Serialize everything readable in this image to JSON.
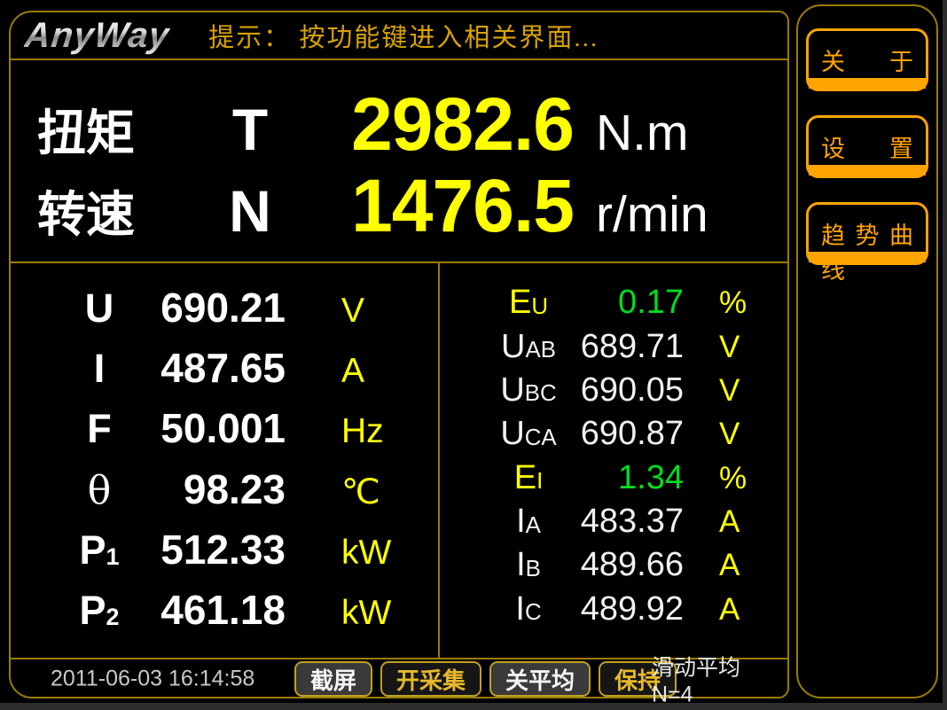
{
  "header": {
    "logo": "AnyWay",
    "hint": "提示： 按功能键进入相关界面..."
  },
  "sidebar": {
    "buttons": [
      {
        "label": "关于"
      },
      {
        "label": "设置"
      },
      {
        "label": "趋势曲线"
      }
    ]
  },
  "main_readouts": {
    "torque": {
      "name": "扭矩",
      "symbol": "T",
      "value": "2982.6",
      "unit": "N.m"
    },
    "speed": {
      "name": "转速",
      "symbol": "N",
      "value": "1476.5",
      "unit": "r/min"
    }
  },
  "left_panel": {
    "rows": [
      {
        "label": "U",
        "sub": "",
        "value": "690.21",
        "unit": "V"
      },
      {
        "label": "I",
        "sub": "",
        "value": "487.65",
        "unit": "A"
      },
      {
        "label": "F",
        "sub": "",
        "value": "50.001",
        "unit": "Hz"
      },
      {
        "label": "θ",
        "sub": "",
        "value": "98.23",
        "unit": "℃"
      },
      {
        "label": "P",
        "sub": "1",
        "value": "512.33",
        "unit": "kW"
      },
      {
        "label": "P",
        "sub": "2",
        "value": "461.18",
        "unit": "kW"
      }
    ]
  },
  "right_panel": {
    "rows": [
      {
        "label": "E",
        "sub": "U",
        "value": "0.17",
        "unit": "%"
      },
      {
        "label": "U",
        "sub": "AB",
        "value": "689.71",
        "unit": "V"
      },
      {
        "label": "U",
        "sub": "BC",
        "value": "690.05",
        "unit": "V"
      },
      {
        "label": "U",
        "sub": "CA",
        "value": "690.87",
        "unit": "V"
      },
      {
        "label": "E",
        "sub": "I",
        "value": "1.34",
        "unit": "%"
      },
      {
        "label": "I",
        "sub": "A",
        "value": "483.37",
        "unit": "A"
      },
      {
        "label": "I",
        "sub": "B",
        "value": "489.66",
        "unit": "A"
      },
      {
        "label": "I",
        "sub": "C",
        "value": "489.92",
        "unit": "A"
      }
    ]
  },
  "footer": {
    "timestamp": "2011-06-03 16:14:58",
    "buttons": [
      {
        "label": "截屏"
      },
      {
        "label": "开采集"
      },
      {
        "label": "关平均"
      },
      {
        "label": "保持"
      }
    ],
    "status": "滑动平均 N=4"
  },
  "colors": {
    "accent_orange": "#ffa400",
    "value_yellow": "#ffff00",
    "ok_green": "#00dd22",
    "frame_gold": "#9a7d00",
    "hint_gold": "#d9a300"
  }
}
